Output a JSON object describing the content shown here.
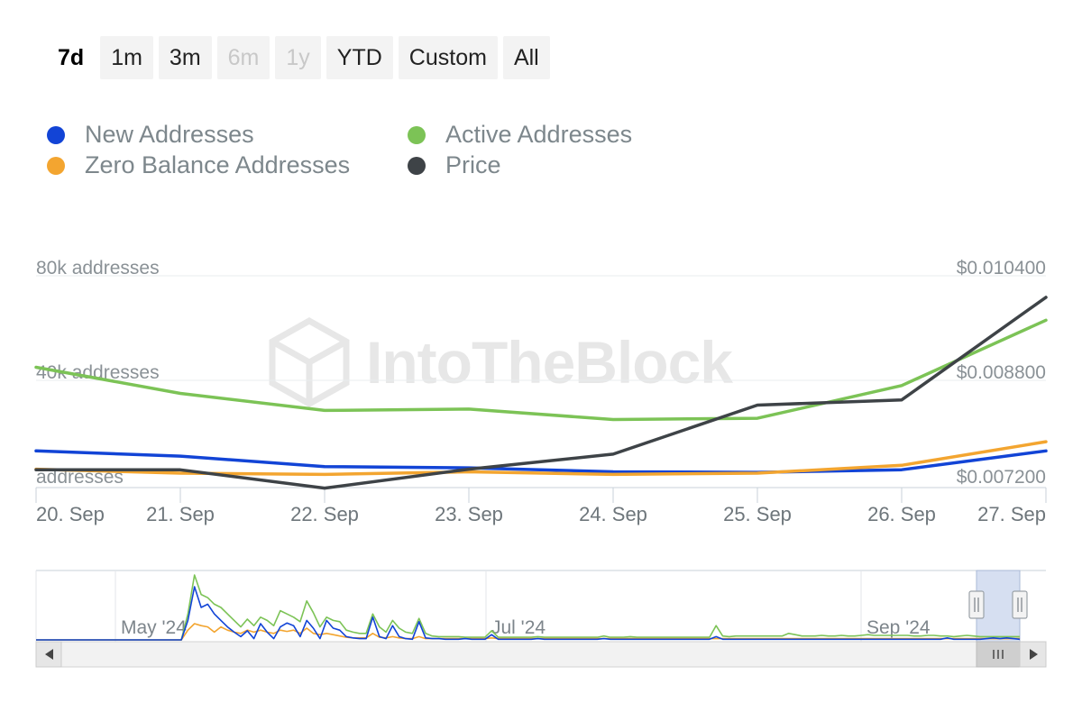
{
  "range_selector": {
    "buttons": [
      {
        "label": "7d",
        "state": "active"
      },
      {
        "label": "1m",
        "state": "normal"
      },
      {
        "label": "3m",
        "state": "normal"
      },
      {
        "label": "6m",
        "state": "disabled"
      },
      {
        "label": "1y",
        "state": "disabled"
      },
      {
        "label": "YTD",
        "state": "normal"
      },
      {
        "label": "Custom",
        "state": "normal"
      },
      {
        "label": "All",
        "state": "normal"
      }
    ]
  },
  "watermark": "IntoTheBlock",
  "colors": {
    "new_addresses": "#1244d6",
    "active_addresses": "#7cc356",
    "zero_balance": "#f3a530",
    "price": "#3e4347",
    "axis_text": "#8a9196",
    "grid": "#e9ecef"
  },
  "chart_data": {
    "type": "line",
    "x": [
      "20. Sep",
      "21. Sep",
      "22. Sep",
      "23. Sep",
      "24. Sep",
      "25. Sep",
      "26. Sep",
      "27. Sep"
    ],
    "left_axis": {
      "ticks": [
        "80k addresses",
        "40k addresses",
        "addresses"
      ],
      "ylim": [
        0,
        80000
      ]
    },
    "right_axis": {
      "ticks": [
        "$0.010400",
        "$0.008800",
        "$0.007200"
      ],
      "ylim": [
        0.0072,
        0.0104
      ]
    },
    "grid": true,
    "legend_position": "top-left",
    "series": [
      {
        "name": "New Addresses",
        "axis": "left",
        "color": "#1244d6",
        "values": [
          13000,
          11000,
          7000,
          6500,
          5000,
          4800,
          5800,
          13000
        ]
      },
      {
        "name": "Active Addresses",
        "axis": "left",
        "color": "#7cc356",
        "values": [
          45000,
          35000,
          28500,
          29000,
          25000,
          25500,
          38000,
          63000
        ]
      },
      {
        "name": "Zero Balance Addresses",
        "axis": "left",
        "color": "#f3a530",
        "values": [
          6000,
          4500,
          4000,
          5000,
          4000,
          4500,
          7500,
          16500
        ]
      },
      {
        "name": "Price",
        "axis": "right",
        "color": "#3e4347",
        "values": [
          0.00743,
          0.00743,
          0.00715,
          0.00744,
          0.00767,
          0.00842,
          0.0085,
          0.01007
        ]
      }
    ]
  },
  "navigator": {
    "month_labels": [
      "May '24",
      "Jul '24",
      "Sep '24"
    ],
    "series": {
      "new": [
        0,
        0,
        0,
        0,
        0,
        0,
        0,
        0,
        0,
        0,
        0,
        0,
        0,
        0,
        0,
        0,
        0,
        0,
        0,
        0,
        0,
        0,
        0,
        0.3,
        0.82,
        0.5,
        0.55,
        0.4,
        0.3,
        0.2,
        0.12,
        0.05,
        0.14,
        0.02,
        0.25,
        0.12,
        0.02,
        0.2,
        0.26,
        0.22,
        0.05,
        0.3,
        0.18,
        0.02,
        0.3,
        0.18,
        0.15,
        0.05,
        0.03,
        0.02,
        0.02,
        0.35,
        0.05,
        0.02,
        0.22,
        0.05,
        0.02,
        0.01,
        0.28,
        0.03,
        0.02,
        0.02,
        0.01,
        0.01,
        0.01,
        0.02,
        0.01,
        0.01,
        0.01,
        0.08,
        0.01,
        0.01,
        0.01,
        0.01,
        0.01,
        0.01,
        0.02,
        0.01,
        0.01,
        0.01,
        0.01,
        0.01,
        0.01,
        0.01,
        0.01,
        0.01,
        0.02,
        0.01,
        0.01,
        0.01,
        0.01,
        0.01,
        0.01,
        0.01,
        0.01,
        0.01,
        0.01,
        0.01,
        0.01,
        0.01,
        0.01,
        0.01,
        0.01,
        0.05,
        0.01,
        0.01,
        0.01,
        0.01,
        0.01,
        0.01,
        0.01,
        0.01,
        0.01,
        0.01,
        0.01,
        0.01,
        0.01,
        0.01,
        0.01,
        0.01,
        0.01,
        0.01,
        0.01,
        0.01,
        0.01,
        0.01,
        0.01,
        0.01,
        0.01,
        0.01,
        0.01,
        0.01,
        0.01,
        0.01,
        0.01,
        0.01,
        0.01,
        0.01,
        0.03,
        0.01,
        0.01,
        0.01,
        0.01,
        0.01,
        0.02,
        0.03,
        0.02,
        0.03,
        0.02,
        0.01
      ],
      "active": [
        0,
        0,
        0,
        0,
        0,
        0,
        0,
        0,
        0,
        0,
        0,
        0,
        0,
        0,
        0,
        0,
        0,
        0,
        0,
        0,
        0,
        0,
        0,
        0.4,
        1.0,
        0.7,
        0.65,
        0.55,
        0.5,
        0.4,
        0.3,
        0.2,
        0.32,
        0.22,
        0.35,
        0.3,
        0.22,
        0.45,
        0.4,
        0.35,
        0.28,
        0.6,
        0.42,
        0.2,
        0.35,
        0.3,
        0.28,
        0.15,
        0.12,
        0.1,
        0.1,
        0.4,
        0.2,
        0.12,
        0.3,
        0.18,
        0.12,
        0.1,
        0.33,
        0.1,
        0.06,
        0.05,
        0.05,
        0.05,
        0.05,
        0.04,
        0.04,
        0.04,
        0.04,
        0.14,
        0.04,
        0.04,
        0.04,
        0.04,
        0.04,
        0.04,
        0.05,
        0.04,
        0.04,
        0.04,
        0.04,
        0.04,
        0.04,
        0.04,
        0.04,
        0.04,
        0.06,
        0.04,
        0.04,
        0.04,
        0.05,
        0.04,
        0.04,
        0.04,
        0.04,
        0.04,
        0.04,
        0.04,
        0.04,
        0.04,
        0.04,
        0.04,
        0.04,
        0.22,
        0.06,
        0.05,
        0.06,
        0.06,
        0.06,
        0.06,
        0.06,
        0.06,
        0.06,
        0.06,
        0.1,
        0.08,
        0.06,
        0.06,
        0.06,
        0.07,
        0.06,
        0.06,
        0.07,
        0.06,
        0.06,
        0.07,
        0.08,
        0.07,
        0.07,
        0.07,
        0.07,
        0.07,
        0.07,
        0.06,
        0.06,
        0.07,
        0.07,
        0.06,
        0.06,
        0.05,
        0.06,
        0.07,
        0.06,
        0.05,
        0.05,
        0.05,
        0.05,
        0.05,
        0.05,
        0.05
      ],
      "zero": [
        0,
        0,
        0,
        0,
        0,
        0,
        0,
        0,
        0,
        0,
        0,
        0,
        0,
        0,
        0,
        0,
        0,
        0,
        0,
        0,
        0,
        0,
        0,
        0.15,
        0.25,
        0.22,
        0.2,
        0.12,
        0.2,
        0.15,
        0.12,
        0.1,
        0.15,
        0.12,
        0.15,
        0.12,
        0.1,
        0.15,
        0.13,
        0.15,
        0.1,
        0.18,
        0.1,
        0.08,
        0.1,
        0.08,
        0.06,
        0.04,
        0.03,
        0.03,
        0.03,
        0.1,
        0.04,
        0.03,
        0.05,
        0.03,
        0.02,
        0.02,
        0.05,
        0.02,
        0.02,
        0.02,
        0.02,
        0.02,
        0.02,
        0.02,
        0.02,
        0.02,
        0.02,
        0.03,
        0.02,
        0.02,
        0.02,
        0.02,
        0.02,
        0.02,
        0.02,
        0.02,
        0.02,
        0.02,
        0.02,
        0.02,
        0.02,
        0.02,
        0.02,
        0.02,
        0.02,
        0.02,
        0.02,
        0.02,
        0.02,
        0.02,
        0.02,
        0.02,
        0.02,
        0.02,
        0.02,
        0.02,
        0.02,
        0.02,
        0.02,
        0.02,
        0.02,
        0.02,
        0.02,
        0.02,
        0.02,
        0.02,
        0.02,
        0.02,
        0.02,
        0.02,
        0.02,
        0.02,
        0.02,
        0.02,
        0.02,
        0.02,
        0.02,
        0.02,
        0.02,
        0.02,
        0.02,
        0.02,
        0.02,
        0.02,
        0.02,
        0.02,
        0.02,
        0.02,
        0.02,
        0.02,
        0.02,
        0.02,
        0.02,
        0.02,
        0.02,
        0.02,
        0.02,
        0.02,
        0.02,
        0.02,
        0.02,
        0.02,
        0.02,
        0.02,
        0.02,
        0.02,
        0.02,
        0.02
      ]
    }
  }
}
